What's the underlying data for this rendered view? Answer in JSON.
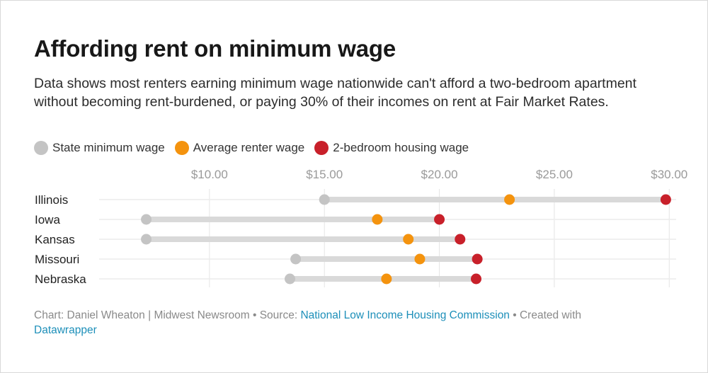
{
  "title": "Affording rent on minimum wage",
  "subtitle": "Data shows most renters earning minimum wage nationwide can't afford a two-bedroom apartment without becoming rent-burdened, or paying 30% of their incomes on rent at Fair Market Rates.",
  "legend": [
    {
      "label": "State minimum wage",
      "color": "#c4c4c4"
    },
    {
      "label": "Average renter wage",
      "color": "#f4930e"
    },
    {
      "label": "2-bedroom housing wage",
      "color": "#c8202a"
    }
  ],
  "chart_data": {
    "type": "dot-range",
    "title": "Affording rent on minimum wage",
    "x_ticks": [
      10,
      15,
      20,
      25,
      30
    ],
    "x_tick_labels": [
      "$10.00",
      "$15.00",
      "$20.00",
      "$25.00",
      "$30.00"
    ],
    "xlim": [
      5.2,
      30.3
    ],
    "categories": [
      "Illinois",
      "Iowa",
      "Kansas",
      "Missouri",
      "Nebraska"
    ],
    "series": [
      {
        "name": "State minimum wage",
        "color": "#c4c4c4",
        "values": [
          15.0,
          7.25,
          7.25,
          13.75,
          13.5
        ]
      },
      {
        "name": "Average renter wage",
        "color": "#f4930e",
        "values": [
          23.05,
          17.3,
          18.65,
          19.15,
          17.7
        ]
      },
      {
        "name": "2-bedroom housing wage",
        "color": "#c8202a",
        "values": [
          29.85,
          20.0,
          20.9,
          21.65,
          21.6
        ]
      }
    ]
  },
  "footer": {
    "prefix": "Chart: Daniel Wheaton | Midwest Newsroom • Source: ",
    "source_link": "National Low Income Housing Commission",
    "middle": " • Created with ",
    "tool_link": "Datawrapper"
  }
}
